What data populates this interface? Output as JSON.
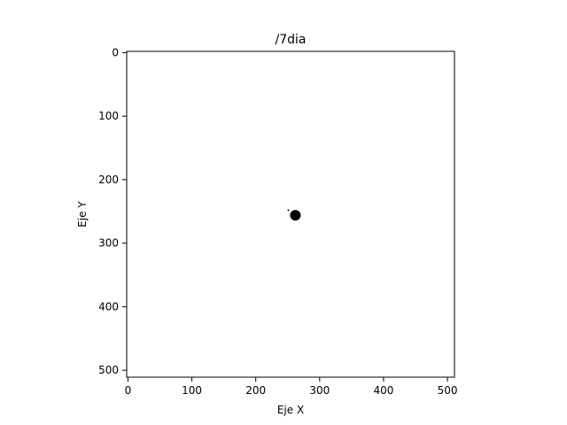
{
  "chart_data": {
    "type": "scatter",
    "title": "/7dia",
    "xlabel": "Eje X",
    "ylabel": "Eje Y",
    "xlim": [
      -2,
      511
    ],
    "ylim": [
      511,
      -2
    ],
    "y_inverted": true,
    "grid": false,
    "xticks": [
      0,
      100,
      200,
      300,
      400,
      500
    ],
    "yticks": [
      0,
      100,
      200,
      300,
      400,
      500
    ],
    "series": [
      {
        "points": [
          {
            "x": 262,
            "y": 256,
            "size": "large"
          },
          {
            "x": 251,
            "y": 248,
            "size": "small"
          }
        ]
      }
    ],
    "colors": {
      "marker": "#000000",
      "axes": "#000000",
      "background": "#ffffff"
    }
  }
}
